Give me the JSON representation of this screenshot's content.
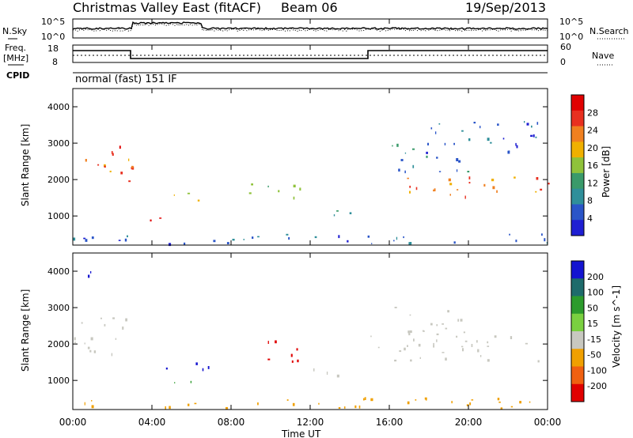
{
  "header": {
    "title": "Christmas Valley East (fitACF)",
    "beam": "Beam 06",
    "date": "19/Sep/2013"
  },
  "noise_panel": {
    "left_label": "N.Sky",
    "right_label": "N.Search",
    "left_ticks": [
      "10^5",
      "10^0"
    ],
    "right_ticks": [
      "10^5",
      "10^0"
    ]
  },
  "freq_panel": {
    "left_label_1": "Freq.",
    "left_label_2": "[MHz]",
    "right_label": "Nave",
    "left_ticks": [
      "18",
      "8"
    ],
    "right_ticks": [
      "60",
      "0"
    ]
  },
  "cpid": {
    "label": "CPID",
    "value": "normal (fast) 151 IF"
  },
  "x_axis": {
    "ticks": [
      "00:00",
      "04:00",
      "08:00",
      "12:00",
      "16:00",
      "20:00",
      "00:00"
    ],
    "label": "Time UT"
  },
  "colors": {
    "power": [
      "#1f1fd2",
      "#2a55c8",
      "#2f8f9a",
      "#3a9a6a",
      "#8fc23a",
      "#f0b000",
      "#f08020",
      "#e83020",
      "#e00000"
    ],
    "velocity": [
      "#e00000",
      "#f06010",
      "#f0a000",
      "#c8c8c0",
      "#7ad040",
      "#2c9b2c",
      "#1e6b6b",
      "#1414d0"
    ]
  },
  "chart_data": [
    {
      "type": "heatmap",
      "name": "power",
      "ylabel": "Slant Range [km]",
      "xlabel": "Time UT",
      "xlim": [
        0,
        24
      ],
      "ylim": [
        200,
        4500
      ],
      "y_ticks": [
        "1000",
        "2000",
        "3000",
        "4000"
      ],
      "colorbar_label": "Power [dB]",
      "colorbar_ticks": [
        "4",
        "8",
        "12",
        "16",
        "20",
        "24",
        "28"
      ],
      "scale": [
        0,
        32
      ],
      "regions": [
        {
          "t": [
            0.0,
            3.0
          ],
          "r": [
            1800,
            2600
          ],
          "v": 24
        },
        {
          "t": [
            1.5,
            2.7
          ],
          "r": [
            2400,
            2900
          ],
          "v": 28
        },
        {
          "t": [
            3.5,
            5.8
          ],
          "r": [
            850,
            1000
          ],
          "v": 26
        },
        {
          "t": [
            4.8,
            6.8
          ],
          "r": [
            1250,
            1600
          ],
          "v": 18
        },
        {
          "t": [
            8.8,
            11.5
          ],
          "r": [
            1400,
            2000
          ],
          "v": 14
        },
        {
          "t": [
            11.5,
            14.0
          ],
          "r": [
            1000,
            1300
          ],
          "v": 10
        },
        {
          "t": [
            16.0,
            24.0
          ],
          "r": [
            1500,
            2100
          ],
          "v": 24
        },
        {
          "t": [
            16.0,
            20.0
          ],
          "r": [
            2100,
            3000
          ],
          "v": 8
        },
        {
          "t": [
            17.5,
            23.5
          ],
          "r": [
            2700,
            3600
          ],
          "v": 6
        },
        {
          "t": [
            0.0,
            24.0
          ],
          "r": [
            200,
            500
          ],
          "v": 6
        }
      ]
    },
    {
      "type": "heatmap",
      "name": "velocity",
      "ylabel": "Slant Range [km]",
      "xlabel": "Time UT",
      "xlim": [
        0,
        24
      ],
      "ylim": [
        200,
        4500
      ],
      "y_ticks": [
        "1000",
        "2000",
        "3000",
        "4000"
      ],
      "colorbar_label": "Velocity [m s^-1]",
      "colorbar_ticks": [
        "200",
        "100",
        "50",
        "15",
        "-15",
        "-50",
        "-100",
        "-200"
      ],
      "regions": [
        {
          "t": [
            0.0,
            3.0
          ],
          "r": [
            1700,
            2800
          ],
          "v": 0
        },
        {
          "t": [
            3.5,
            6.0
          ],
          "r": [
            850,
            1050
          ],
          "v": 60
        },
        {
          "t": [
            4.2,
            7.0
          ],
          "r": [
            1250,
            1600
          ],
          "v": 220
        },
        {
          "t": [
            0.5,
            1.2
          ],
          "r": [
            3400,
            4000
          ],
          "v": 220
        },
        {
          "t": [
            8.8,
            11.5
          ],
          "r": [
            1500,
            2100
          ],
          "v": -120
        },
        {
          "t": [
            11.5,
            14.0
          ],
          "r": [
            1100,
            1400
          ],
          "v": 0
        },
        {
          "t": [
            15.0,
            24.0
          ],
          "r": [
            1500,
            2300
          ],
          "v": 0
        },
        {
          "t": [
            16.0,
            20.0
          ],
          "r": [
            2300,
            3000
          ],
          "v": 0
        },
        {
          "t": [
            0.0,
            24.0
          ],
          "r": [
            200,
            500
          ],
          "v": -40
        }
      ]
    }
  ]
}
